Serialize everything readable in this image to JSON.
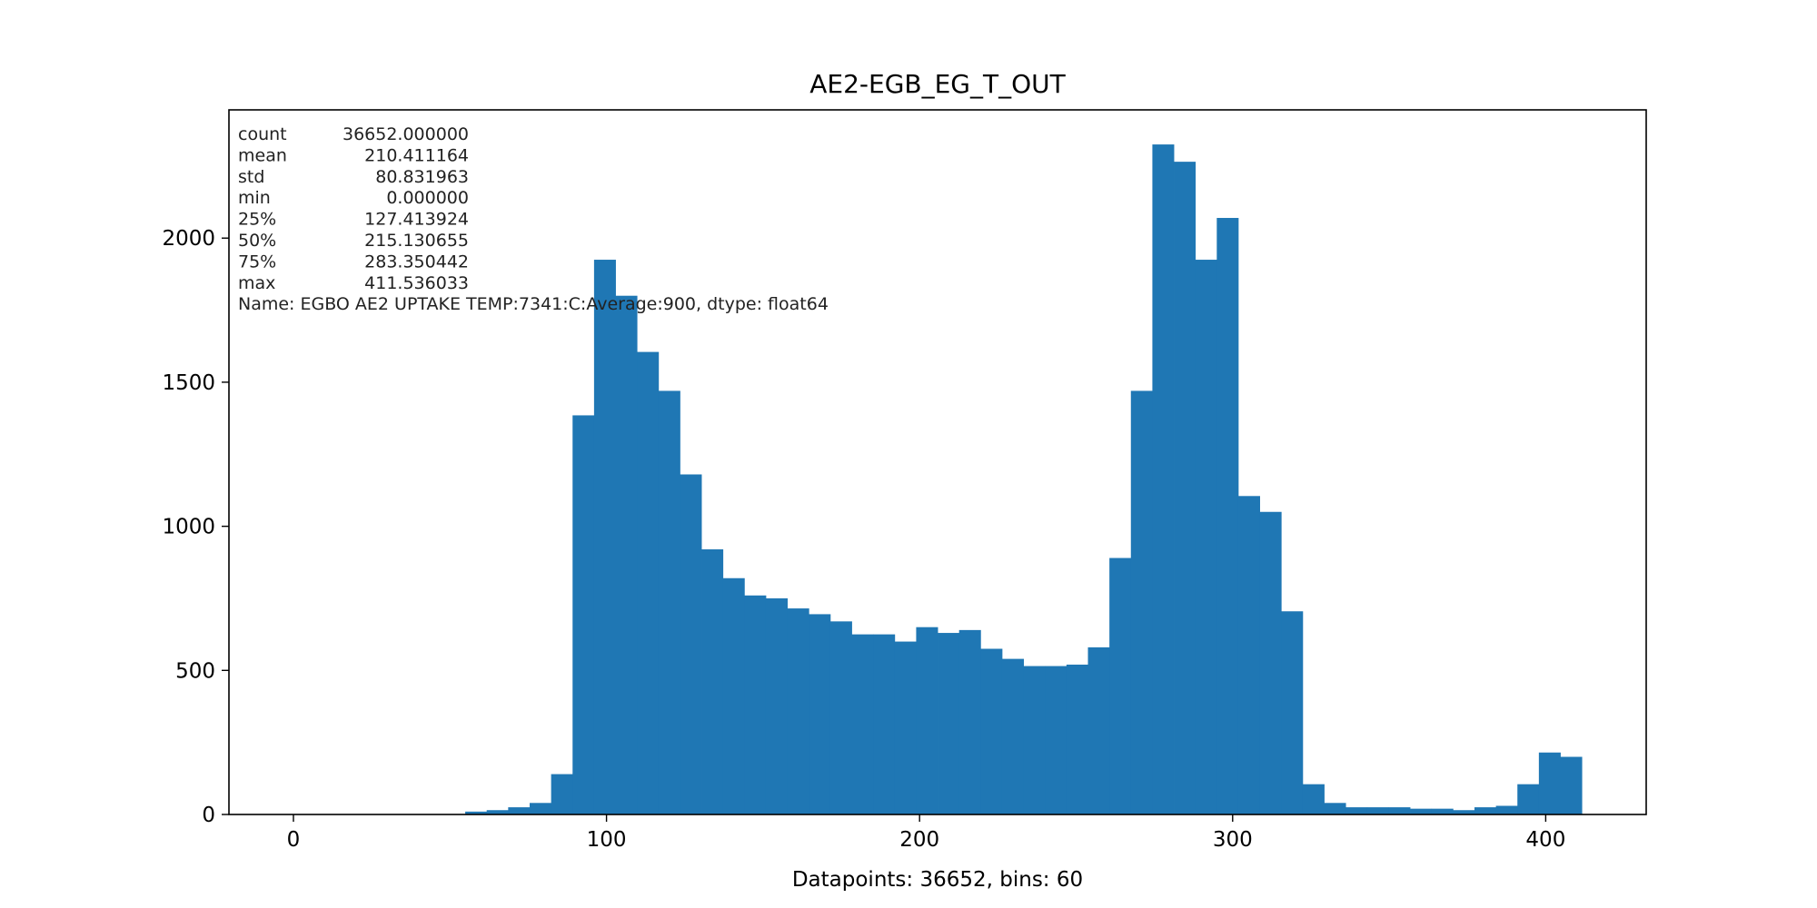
{
  "chart_data": {
    "type": "bar",
    "title": "AE2-EGB_EG_T_OUT",
    "xlabel": "Datapoints: 36652, bins: 60",
    "ylabel": "",
    "bar_color": "#1f77b4",
    "xlim": [
      -20.6,
      432.1
    ],
    "ylim": [
      0,
      2445
    ],
    "x_ticks": [
      0,
      100,
      200,
      300,
      400
    ],
    "y_ticks": [
      0,
      500,
      1000,
      1500,
      2000
    ],
    "bin_width": 6.85893,
    "bin_left_edges": [
      0.0,
      6.859,
      13.718,
      20.577,
      27.436,
      34.295,
      41.154,
      48.013,
      54.871,
      61.73,
      68.589,
      75.448,
      82.307,
      89.166,
      96.025,
      102.884,
      109.743,
      116.602,
      123.461,
      130.32,
      137.179,
      144.038,
      150.896,
      157.755,
      164.614,
      171.473,
      178.332,
      185.191,
      192.05,
      198.909,
      205.768,
      212.627,
      219.486,
      226.345,
      233.204,
      240.063,
      246.921,
      253.78,
      260.639,
      267.498,
      274.357,
      281.216,
      288.075,
      294.934,
      301.793,
      308.652,
      315.511,
      322.37,
      329.229,
      336.088,
      342.946,
      349.805,
      356.664,
      363.523,
      370.382,
      377.241,
      384.1,
      390.959,
      397.818,
      404.677
    ],
    "values": [
      0,
      0,
      0,
      0,
      0,
      0,
      0,
      0,
      10,
      15,
      25,
      40,
      140,
      1385,
      1925,
      1800,
      1605,
      1470,
      1180,
      920,
      820,
      760,
      750,
      715,
      695,
      670,
      625,
      625,
      600,
      650,
      630,
      640,
      575,
      540,
      515,
      515,
      520,
      580,
      890,
      1470,
      2325,
      2265,
      1925,
      2070,
      1105,
      1050,
      705,
      105,
      40,
      25,
      25,
      25,
      20,
      20,
      15,
      25,
      30,
      105,
      215,
      200
    ],
    "annotation": {
      "lines": [
        {
          "label": "count",
          "value": "36652.000000"
        },
        {
          "label": "mean",
          "value": "210.411164"
        },
        {
          "label": "std",
          "value": "80.831963"
        },
        {
          "label": "min",
          "value": "0.000000"
        },
        {
          "label": "25%",
          "value": "127.413924"
        },
        {
          "label": "50%",
          "value": "215.130655"
        },
        {
          "label": "75%",
          "value": "283.350442"
        },
        {
          "label": "max",
          "value": "411.536033"
        }
      ],
      "name_line": "Name: EGBO AE2 UPTAKE TEMP:7341:C:Average:900, dtype: float64"
    }
  }
}
